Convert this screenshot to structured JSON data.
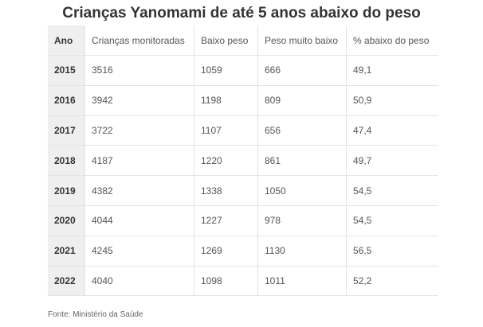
{
  "title": "Crianças Yanomami de até 5 anos abaixo do peso",
  "source": "Fonte: Ministério da Saúde",
  "chart_data": {
    "type": "table",
    "title": "Crianças Yanomami de até 5 anos abaixo do peso",
    "columns": [
      "Ano",
      "Crianças monitoradas",
      "Baixo peso",
      "Peso muito baixo",
      "% abaixo do peso"
    ],
    "rows": [
      [
        "2015",
        "3516",
        "1059",
        "666",
        "49,1"
      ],
      [
        "2016",
        "3942",
        "1198",
        "809",
        "50,9"
      ],
      [
        "2017",
        "3722",
        "1107",
        "656",
        "47,4"
      ],
      [
        "2018",
        "4187",
        "1220",
        "861",
        "49,7"
      ],
      [
        "2019",
        "4382",
        "1338",
        "1050",
        "54,5"
      ],
      [
        "2020",
        "4044",
        "1227",
        "978",
        "54,5"
      ],
      [
        "2021",
        "4245",
        "1269",
        "1130",
        "56,5"
      ],
      [
        "2022",
        "4040",
        "1098",
        "1011",
        "52,2"
      ]
    ]
  },
  "colors": {
    "header_column_bg": "#efefef",
    "grid_line": "#e4e4e4",
    "text": "#333333"
  }
}
